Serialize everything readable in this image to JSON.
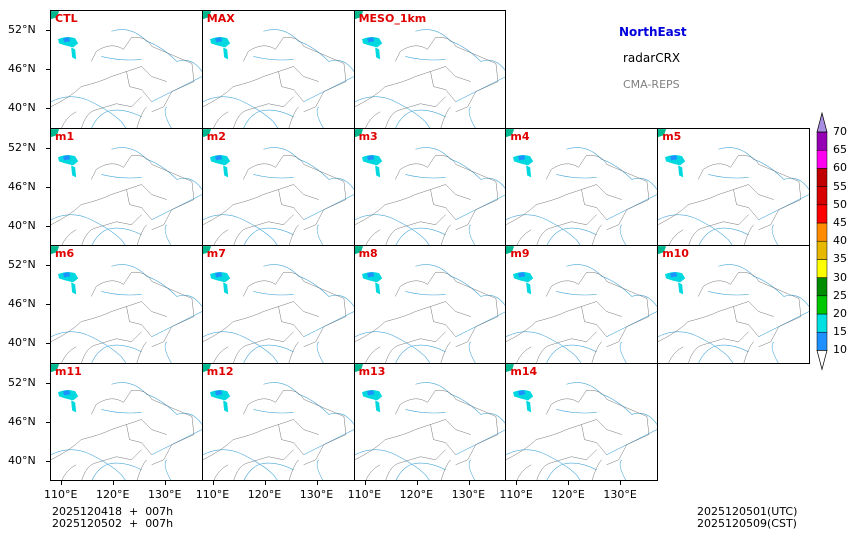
{
  "title": {
    "region": "NorthEast",
    "variable": "radarCRX",
    "model": "CMA-REPS",
    "region_color": "#0000dd",
    "model_color": "#808080"
  },
  "panels": [
    {
      "label": "CTL",
      "row": 0,
      "col": 0
    },
    {
      "label": "MAX",
      "row": 0,
      "col": 1
    },
    {
      "label": "MESO_1km",
      "row": 0,
      "col": 2
    },
    {
      "label": "m1",
      "row": 1,
      "col": 0
    },
    {
      "label": "m2",
      "row": 1,
      "col": 1
    },
    {
      "label": "m3",
      "row": 1,
      "col": 2
    },
    {
      "label": "m4",
      "row": 1,
      "col": 3
    },
    {
      "label": "m5",
      "row": 1,
      "col": 4
    },
    {
      "label": "m6",
      "row": 2,
      "col": 0
    },
    {
      "label": "m7",
      "row": 2,
      "col": 1
    },
    {
      "label": "m8",
      "row": 2,
      "col": 2
    },
    {
      "label": "m9",
      "row": 2,
      "col": 3
    },
    {
      "label": "m10",
      "row": 2,
      "col": 4
    },
    {
      "label": "m11",
      "row": 3,
      "col": 0
    },
    {
      "label": "m12",
      "row": 3,
      "col": 1
    },
    {
      "label": "m13",
      "row": 3,
      "col": 2
    },
    {
      "label": "m14",
      "row": 3,
      "col": 3
    }
  ],
  "lat_ticks": [
    "52°N",
    "46°N",
    "40°N"
  ],
  "lon_ticks": [
    "110°E",
    "120°E",
    "130°E"
  ],
  "footer": {
    "init_utc": "2025120418  +  007h",
    "init_cst": "2025120502  +  007h",
    "valid_utc": "2025120501(UTC)",
    "valid_cst": "2025120509(CST)"
  },
  "chart_data": {
    "type": "heatmap",
    "title": "NorthEast radarCRX CMA-REPS",
    "colorbar": {
      "levels": [
        10,
        15,
        20,
        25,
        30,
        35,
        40,
        45,
        50,
        55,
        60,
        65,
        70
      ],
      "labels": [
        "10",
        "15",
        "20",
        "25",
        "30",
        "35",
        "40",
        "45",
        "50",
        "55",
        "60",
        "65",
        "70"
      ],
      "colors": [
        "#1e90ff",
        "#00e0e0",
        "#00c800",
        "#008c00",
        "#ffff00",
        "#e6b800",
        "#ff8c00",
        "#ff0000",
        "#d80000",
        "#c00000",
        "#ff00f0",
        "#9600b4"
      ],
      "over_color": "#a88ee0",
      "extend": "both"
    },
    "xlim": [
      "108°E",
      "137°E"
    ],
    "ylim": [
      "37°N",
      "54°N"
    ]
  }
}
